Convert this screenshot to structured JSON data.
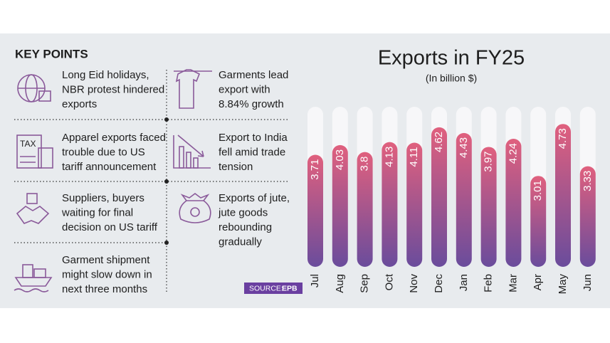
{
  "key_points": {
    "heading": "KEY POINTS",
    "items": [
      {
        "lines": [
          "Long Eid holidays,",
          "NBR protest hindered",
          "exports"
        ]
      },
      {
        "lines": [
          "Apparel exports faced",
          "trouble due to US",
          "tariff announcement"
        ]
      },
      {
        "lines": [
          "Suppliers, buyers",
          "waiting for final",
          "decision on US tariff"
        ]
      },
      {
        "lines": [
          "Garment shipment",
          "might slow down in",
          "next three months"
        ]
      },
      {
        "lines": [
          "Garments lead",
          "export with",
          "8.84% growth"
        ]
      },
      {
        "lines": [
          "Export to India",
          "fell amid trade",
          "tension"
        ]
      },
      {
        "lines": [
          "Exports of jute,",
          "jute goods",
          "rebounding",
          "gradually"
        ]
      }
    ]
  },
  "source": {
    "label": "SOURCE:",
    "name": "EPB"
  },
  "chart_data": {
    "type": "bar",
    "title": "Exports in FY25",
    "subtitle": "(In billion $)",
    "categories": [
      "Jul",
      "Aug",
      "Sep",
      "Oct",
      "Nov",
      "Dec",
      "Jan",
      "Feb",
      "Mar",
      "Apr",
      "May",
      "Jun"
    ],
    "values": [
      3.71,
      4.03,
      3.8,
      4.13,
      4.11,
      4.62,
      4.43,
      3.97,
      4.24,
      3.01,
      4.73,
      3.33
    ],
    "color_top": "#e0607e",
    "color_bottom": "#6a4c9c",
    "ylim": [
      0,
      5.3
    ]
  }
}
